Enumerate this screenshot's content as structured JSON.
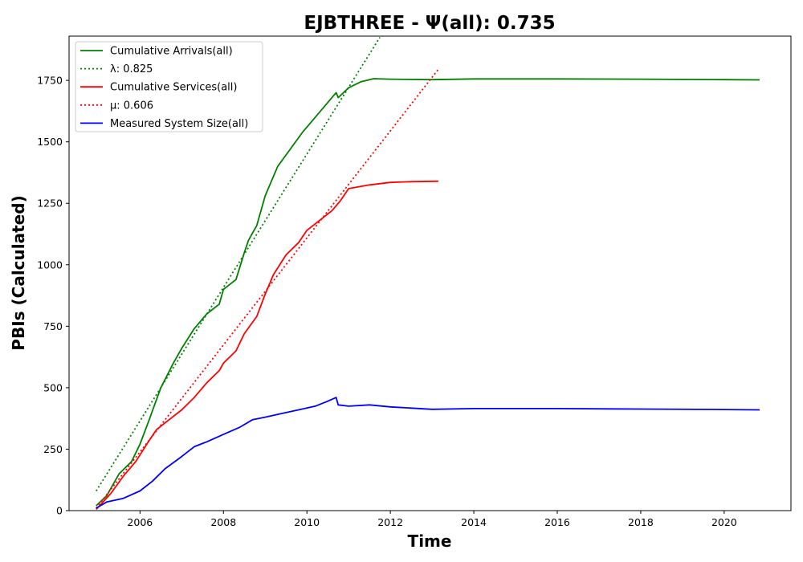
{
  "chart_data": {
    "type": "line",
    "title": "EJBTHREE -  Ψ(all): 0.735",
    "xlabel": "Time",
    "ylabel": "PBIs (Calculated)",
    "xlim": [
      2004.3,
      2021.6
    ],
    "ylim": [
      0,
      1930
    ],
    "x_ticks": [
      2006,
      2008,
      2010,
      2012,
      2014,
      2016,
      2018,
      2020
    ],
    "y_ticks": [
      0,
      250,
      500,
      750,
      1000,
      1250,
      1500,
      1750
    ],
    "grid": false,
    "legend_position": "top-left",
    "series": [
      {
        "name": "Cumulative Arrivals(all)",
        "style": "solid",
        "color": "#008000",
        "points": [
          [
            2004.95,
            20
          ],
          [
            2005.2,
            60
          ],
          [
            2005.5,
            150
          ],
          [
            2005.8,
            200
          ],
          [
            2006.0,
            270
          ],
          [
            2006.2,
            360
          ],
          [
            2006.5,
            500
          ],
          [
            2006.8,
            600
          ],
          [
            2007.0,
            660
          ],
          [
            2007.3,
            740
          ],
          [
            2007.6,
            800
          ],
          [
            2007.9,
            840
          ],
          [
            2008.0,
            900
          ],
          [
            2008.3,
            940
          ],
          [
            2008.5,
            1050
          ],
          [
            2008.6,
            1100
          ],
          [
            2008.8,
            1160
          ],
          [
            2009.0,
            1280
          ],
          [
            2009.3,
            1400
          ],
          [
            2009.6,
            1470
          ],
          [
            2009.9,
            1540
          ],
          [
            2010.2,
            1600
          ],
          [
            2010.4,
            1640
          ],
          [
            2010.7,
            1700
          ],
          [
            2010.75,
            1680
          ],
          [
            2011.0,
            1720
          ],
          [
            2011.3,
            1745
          ],
          [
            2011.6,
            1757
          ],
          [
            2012.0,
            1755
          ],
          [
            2013.0,
            1753
          ],
          [
            2014.0,
            1756
          ],
          [
            2016.0,
            1756
          ],
          [
            2018.0,
            1755
          ],
          [
            2020.0,
            1753
          ],
          [
            2020.85,
            1752
          ]
        ]
      },
      {
        "name": "λ: 0.825",
        "style": "dotted",
        "color": "#008000",
        "points": [
          [
            2004.95,
            80
          ],
          [
            2011.75,
            1925
          ]
        ]
      },
      {
        "name": "Cumulative Services(all)",
        "style": "solid",
        "color": "#ff0000",
        "points": [
          [
            2004.95,
            5
          ],
          [
            2005.3,
            70
          ],
          [
            2005.6,
            140
          ],
          [
            2005.9,
            200
          ],
          [
            2006.2,
            280
          ],
          [
            2006.4,
            330
          ],
          [
            2006.7,
            370
          ],
          [
            2007.0,
            410
          ],
          [
            2007.3,
            460
          ],
          [
            2007.6,
            520
          ],
          [
            2007.9,
            570
          ],
          [
            2008.0,
            600
          ],
          [
            2008.3,
            650
          ],
          [
            2008.5,
            720
          ],
          [
            2008.8,
            790
          ],
          [
            2009.0,
            880
          ],
          [
            2009.2,
            960
          ],
          [
            2009.5,
            1040
          ],
          [
            2009.8,
            1090
          ],
          [
            2010.0,
            1140
          ],
          [
            2010.3,
            1180
          ],
          [
            2010.6,
            1220
          ],
          [
            2010.8,
            1260
          ],
          [
            2011.0,
            1310
          ],
          [
            2011.5,
            1325
          ],
          [
            2012.0,
            1335
          ],
          [
            2012.5,
            1338
          ],
          [
            2013.15,
            1340
          ]
        ]
      },
      {
        "name": "μ: 0.606",
        "style": "dotted",
        "color": "#ff0000",
        "points": [
          [
            2004.95,
            10
          ],
          [
            2013.15,
            1795
          ]
        ]
      },
      {
        "name": "Measured System Size(all)",
        "style": "solid",
        "color": "#0000ff",
        "points": [
          [
            2004.95,
            10
          ],
          [
            2005.2,
            35
          ],
          [
            2005.6,
            50
          ],
          [
            2006.0,
            80
          ],
          [
            2006.3,
            120
          ],
          [
            2006.6,
            170
          ],
          [
            2007.0,
            220
          ],
          [
            2007.3,
            260
          ],
          [
            2007.6,
            280
          ],
          [
            2008.0,
            310
          ],
          [
            2008.4,
            340
          ],
          [
            2008.7,
            370
          ],
          [
            2009.0,
            380
          ],
          [
            2009.4,
            395
          ],
          [
            2009.8,
            410
          ],
          [
            2010.2,
            425
          ],
          [
            2010.5,
            445
          ],
          [
            2010.7,
            460
          ],
          [
            2010.75,
            430
          ],
          [
            2011.0,
            425
          ],
          [
            2011.5,
            430
          ],
          [
            2012.0,
            422
          ],
          [
            2013.0,
            412
          ],
          [
            2014.0,
            415
          ],
          [
            2016.0,
            415
          ],
          [
            2018.0,
            413
          ],
          [
            2020.0,
            411
          ],
          [
            2020.85,
            410
          ]
        ]
      }
    ]
  }
}
